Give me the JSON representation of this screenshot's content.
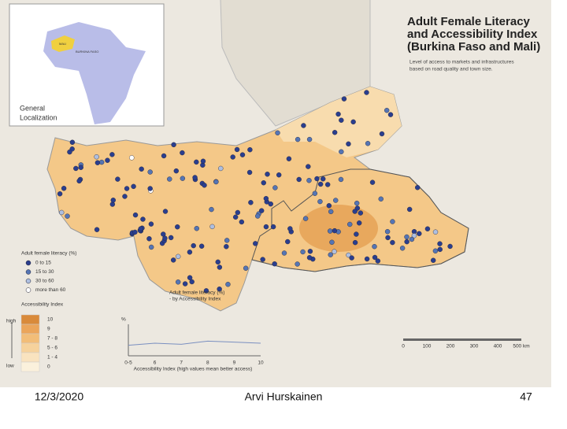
{
  "map": {
    "title": [
      "Adult Female Literacy",
      "and Accessibility Index",
      "(Burkina Faso and Mali)"
    ],
    "subtitle": [
      "Level of access to markets and infrastructures",
      "based on road quality and town size."
    ],
    "inset_label": [
      "General",
      "Localization"
    ],
    "inset_countries": [
      "MALI",
      "BURKINA FASO"
    ],
    "literacy_legend": {
      "title": "Adult female literacy (%)",
      "items": [
        {
          "label": "0 to 15",
          "color": "#2a3e8e"
        },
        {
          "label": "15 to 30",
          "color": "#5575b4"
        },
        {
          "label": "30 to 60",
          "color": "#aebfe0"
        },
        {
          "label": "more than 60",
          "color": "#ffffff"
        }
      ]
    },
    "access_legend": {
      "title": "Accessibility Index",
      "high": "high",
      "low": "low",
      "items": [
        {
          "label": "10",
          "color": "#d98a3a"
        },
        {
          "label": "9",
          "color": "#eba55a"
        },
        {
          "label": "7 - 8",
          "color": "#f2bd78"
        },
        {
          "label": "5 - 6",
          "color": "#f6d29c"
        },
        {
          "label": "1 - 4",
          "color": "#f9e3bf"
        },
        {
          "label": "0",
          "color": "#fbf1dc"
        }
      ]
    },
    "scale": [
      "0",
      "100",
      "200",
      "300",
      "400",
      "500 km"
    ]
  },
  "chart_data": {
    "type": "line",
    "title": "Adult female literacy (%)",
    "subtitle": "- by Accessibility Index",
    "y_label": "%",
    "x_label": "Accessibility Index (high values mean better access)",
    "categories": [
      "0-5",
      "6",
      "7",
      "8",
      "9",
      "10"
    ],
    "values": [
      10,
      12,
      11,
      14,
      13,
      12
    ],
    "ylim": [
      0,
      30
    ],
    "color": "#7a8fc0"
  },
  "footer": {
    "date": "12/3/2020",
    "author": "Arvi Hurskainen",
    "page": "47"
  }
}
